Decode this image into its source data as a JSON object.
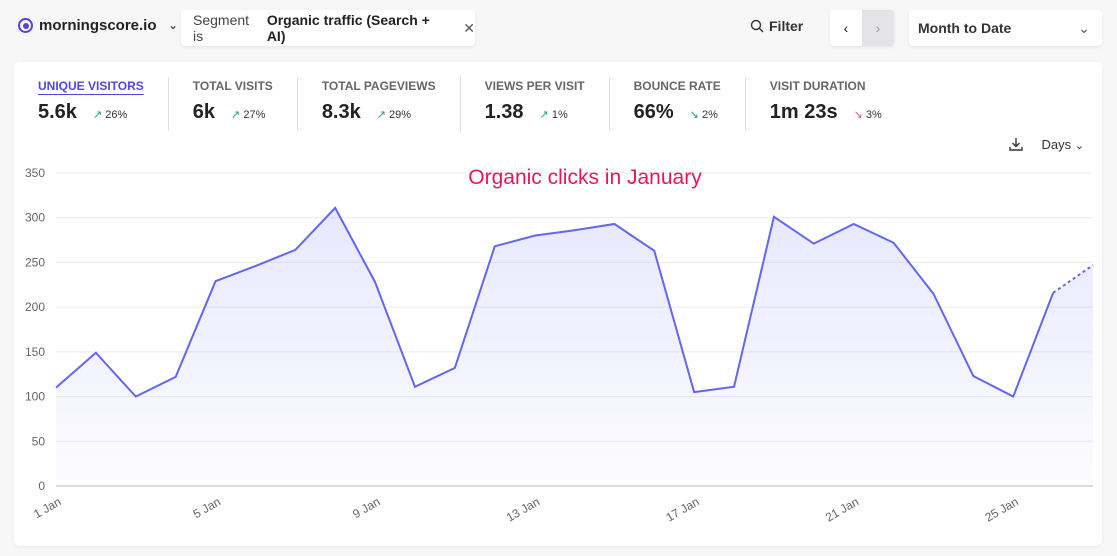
{
  "header": {
    "site": "morningscore.io",
    "segment_prefix": "Segment is",
    "segment_value": "Organic traffic (Search + AI)",
    "filter": "Filter",
    "period": "Month to Date"
  },
  "stats": [
    {
      "label": "UNIQUE VISITORS",
      "value": "5.6k",
      "change": "26%",
      "direction": "up",
      "color": "#22a06b"
    },
    {
      "label": "TOTAL VISITS",
      "value": "6k",
      "change": "27%",
      "direction": "up",
      "color": "#22a06b"
    },
    {
      "label": "TOTAL PAGEVIEWS",
      "value": "8.3k",
      "change": "29%",
      "direction": "up",
      "color": "#22a06b"
    },
    {
      "label": "VIEWS PER VISIT",
      "value": "1.38",
      "change": "1%",
      "direction": "up",
      "color": "#22a06b"
    },
    {
      "label": "BOUNCE RATE",
      "value": "66%",
      "change": "2%",
      "direction": "down",
      "color": "#22a06b"
    },
    {
      "label": "VISIT DURATION",
      "value": "1m 23s",
      "change": "3%",
      "direction": "down",
      "color": "#e05a5a"
    }
  ],
  "interval": "Days",
  "chart_data": {
    "type": "area",
    "annotation": "Organic clicks in January",
    "ylim": [
      0,
      350
    ],
    "yticks": [
      0,
      50,
      100,
      150,
      200,
      250,
      300,
      350
    ],
    "xticks": [
      "1 Jan",
      "5 Jan",
      "9 Jan",
      "13 Jan",
      "17 Jan",
      "21 Jan",
      "25 Jan"
    ],
    "x": [
      1,
      2,
      3,
      4,
      5,
      6,
      7,
      8,
      9,
      10,
      11,
      12,
      13,
      14,
      15,
      16,
      17,
      18,
      19,
      20,
      21,
      22,
      23,
      24,
      25,
      26,
      27
    ],
    "values": [
      110,
      149,
      100,
      122,
      229,
      246,
      264,
      311,
      228,
      111,
      132,
      268,
      280,
      286,
      293,
      263,
      105,
      111,
      301,
      271,
      293,
      272,
      215,
      123,
      100,
      216,
      247
    ],
    "incomplete_last_point": true,
    "color": "#6366f1",
    "grid": true
  }
}
